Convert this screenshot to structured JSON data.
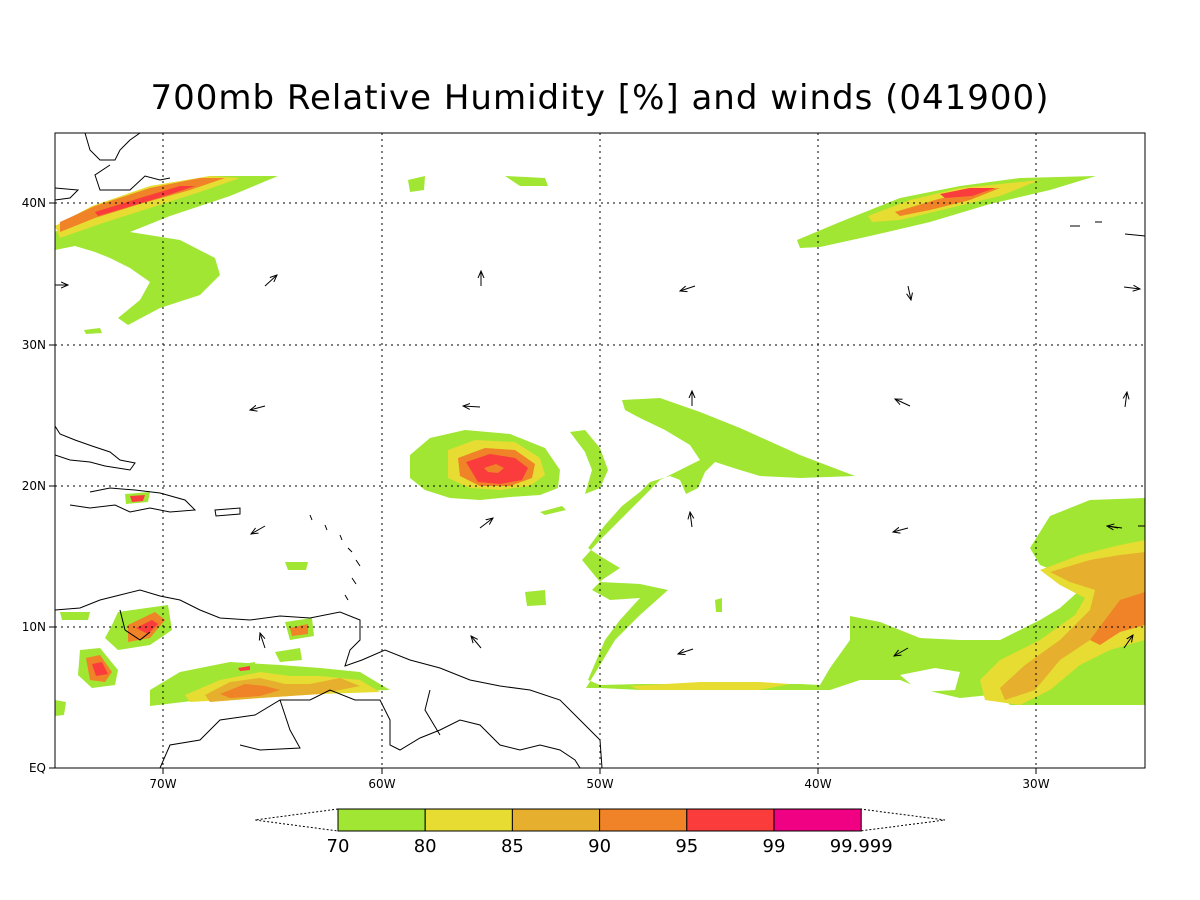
{
  "title": "700mb Relative Humidity [%] and winds (041900)",
  "axes": {
    "lat_labels": [
      "40N",
      "30N",
      "20N",
      "10N",
      "EQ"
    ],
    "lon_labels": [
      "70W",
      "60W",
      "50W",
      "40W",
      "30W"
    ]
  },
  "colorbar": {
    "labels": [
      "70",
      "80",
      "85",
      "90",
      "95",
      "99",
      "99.999"
    ],
    "colors": [
      "#a0e632",
      "#e6dc32",
      "#e6af2d",
      "#f08228",
      "#fa3c3c",
      "#f00082"
    ]
  },
  "palette": {
    "rh_70": "#a0e632",
    "rh_80": "#e6dc32",
    "rh_85": "#e6af2d",
    "rh_90": "#f08228",
    "rh_95": "#fa3c3c",
    "rh_99": "#f00082",
    "coast": "#000000",
    "grid": "#000000"
  }
}
